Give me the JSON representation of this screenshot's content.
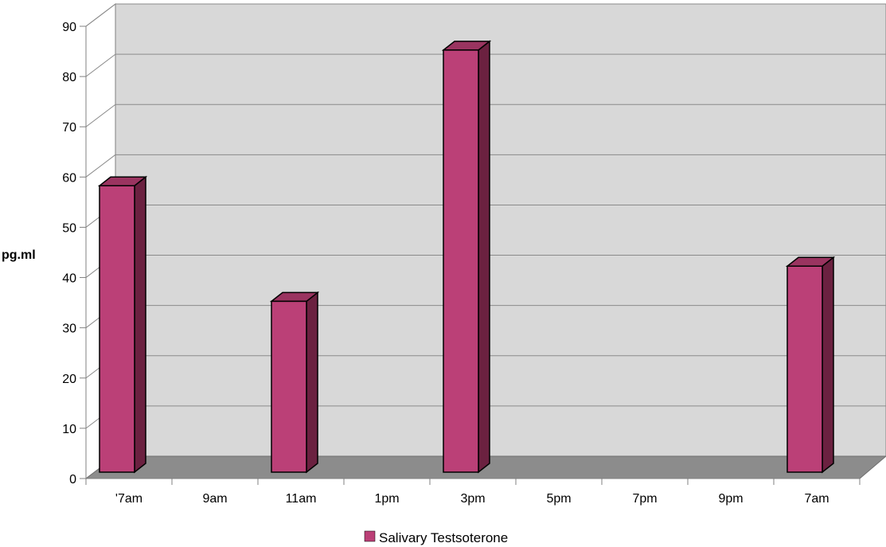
{
  "chart_data": {
    "type": "bar",
    "title": "",
    "xlabel": "",
    "ylabel": "pg.ml",
    "categories": [
      "'7am",
      "9am",
      "11am",
      "1pm",
      "3pm",
      "5pm",
      "7pm",
      "9pm",
      "7am"
    ],
    "series": [
      {
        "name": "Salivary Testsoterone",
        "values": [
          57,
          null,
          34,
          null,
          84,
          null,
          null,
          null,
          41
        ],
        "color": "#bb4077"
      }
    ],
    "ylim": [
      0,
      90
    ],
    "yticks": [
      0,
      10,
      20,
      30,
      40,
      50,
      60,
      70,
      80,
      90
    ],
    "grid": true,
    "legend": "bottom-center",
    "colors": {
      "wall": "#d8d8d8",
      "floor": "#8c8c8c",
      "bar_front": "#bb4077",
      "bar_top": "#9a3460",
      "bar_side": "#6b2140"
    }
  }
}
